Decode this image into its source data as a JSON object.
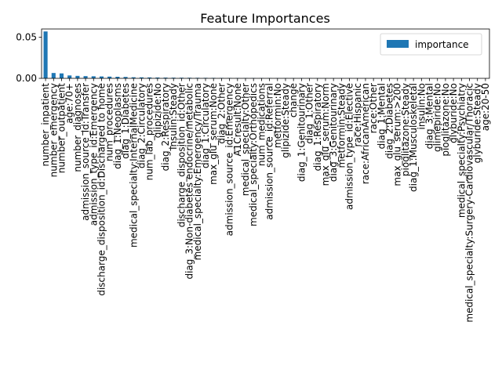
{
  "chart_data": {
    "type": "bar",
    "title": "Feature Importances",
    "xlabel": "",
    "ylabel": "",
    "ylim": [
      0,
      0.06
    ],
    "yticks": [
      "0.00",
      "0.05"
    ],
    "ytick_values": [
      0.0,
      0.05
    ],
    "legend": {
      "placement": "top-right",
      "entries": [
        "importance"
      ]
    },
    "bar_color": "#1f77b4",
    "grid": false,
    "categories": [
      "number_inpatient",
      "number_emergency",
      "number_outpatient",
      "age:70+",
      "number_diagnoses",
      "admission_source_id:Transfer",
      "admission_type_id:Emergency",
      "discharge_disposition_id:Discharged to home",
      "num_procedures",
      "diag_1:Neoplasms",
      "diag_1:Diabetes",
      "medical_specialty:InternalMedicine",
      "diag_2:Circulatory",
      "num_lab_procedures",
      "glipizide:No",
      "diag_2:Respiratory",
      "insulin:Steady",
      "discharge_disposition_id:Other",
      "diag_3:Non-diabetes endocrine/metabolic",
      "medical_specialty:Emergency/Trauma",
      "diag_1:Circulatory",
      "max_glu_serum:None",
      "diag_2:Other",
      "admission_source_id:Emergency",
      "A1Cresult:None",
      "medical_specialty:Other",
      "medical_specialty:Orthopedics",
      "num_medications",
      "admission_source_id:Referral",
      "metformin:No",
      "glipizide:Steady",
      "change",
      "diag_1:Genitourinary",
      "diag_1:Other",
      "diag_1:Respiratory",
      "max_glu_serum:Norm",
      "diag_3:Genitourinary",
      "metformin:Steady",
      "admission_type_id:Elective",
      "race:Hispanic",
      "race:AfricanAmerican",
      "race:Other",
      "diag_1:Mental",
      "diag_2:Diabetes",
      "max_glu_serum:>200",
      "pioglitazone:Steady",
      "diag_1:Musculoskeletal",
      "insulin:No",
      "diag_3:Mental",
      "glimepiride:No",
      "pioglitazone:No",
      "glyburide:No",
      "medical_specialty:Psychiatry",
      "medical_specialty:Surgery-Cardiovascular/Thoracic",
      "glyburide:Steady",
      "age:20-50"
    ],
    "values": [
      0.057,
      0.0065,
      0.006,
      0.0035,
      0.003,
      0.0027,
      0.0025,
      0.0023,
      0.0021,
      0.0019,
      0.0017,
      0.0013,
      0.0012,
      0.0011,
      0.001,
      0.0009,
      0.0008,
      0.00075,
      0.0007,
      0.00065,
      0.0006,
      0.00055,
      0.0005,
      0.00048,
      0.00045,
      0.00042,
      0.0004,
      0.00038,
      0.00035,
      0.00033,
      0.0003,
      0.00028,
      0.00026,
      0.00024,
      0.00022,
      0.0002,
      0.00019,
      0.00018,
      0.00017,
      0.00016,
      0.00015,
      0.00014,
      0.00013,
      0.00012,
      0.00011,
      0.0001,
      9e-05,
      8e-05,
      7e-05,
      6e-05,
      5e-05,
      4e-05,
      3e-05,
      2e-05,
      1e-05,
      5e-06
    ]
  }
}
